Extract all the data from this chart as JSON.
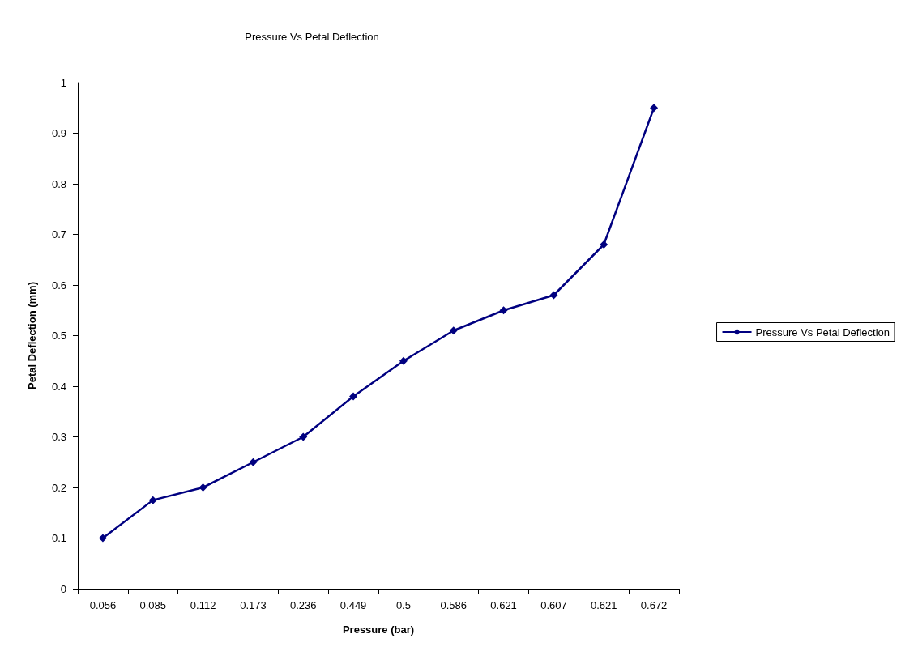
{
  "chart_data": {
    "type": "line",
    "title": "Pressure Vs Petal Deflection",
    "xlabel": "Pressure (bar)",
    "ylabel": "Petal Deflection (mm)",
    "categories": [
      "0.056",
      "0.085",
      "0.112",
      "0.173",
      "0.236",
      "0.449",
      "0.5",
      "0.586",
      "0.621",
      "0.607",
      "0.621",
      "0.672"
    ],
    "series": [
      {
        "name": "Pressure Vs Petal Deflection",
        "color": "#000080",
        "values": [
          0.1,
          0.175,
          0.2,
          0.25,
          0.3,
          0.38,
          0.45,
          0.51,
          0.55,
          0.58,
          0.68,
          0.95
        ]
      }
    ],
    "ylim": [
      0,
      1
    ],
    "yticks": [
      0,
      0.1,
      0.2,
      0.3,
      0.4,
      0.5,
      0.6,
      0.7,
      0.8,
      0.9,
      1
    ],
    "grid": false,
    "legend": "right",
    "marker": "diamond",
    "line_style": "solid"
  }
}
